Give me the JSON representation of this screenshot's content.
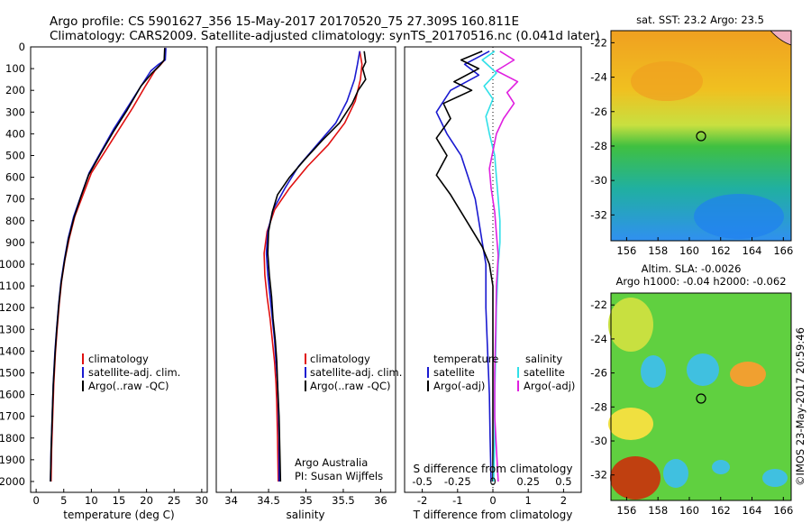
{
  "header": {
    "line1": "Argo profile: CS 5901627_356 15-May-2017 20170520_75 27.309S 160.811E",
    "line2": "Climatology: CARS2009. Satellite-adjusted climatology: synTS_20170516.nc (0.041d later)"
  },
  "colors": {
    "climatology": "#e01010",
    "satellite": "#1a1ad0",
    "argo": "#000000",
    "sat_salinity": "#30e0e8",
    "argo_salinity": "#e020e0"
  },
  "footer": {
    "argo_line1": "Argo Australia",
    "argo_line2": "PI: Susan Wijffels",
    "credit": "©IMOS 23-May-2017 20:59:46"
  },
  "maps": {
    "sst_title": "sat. SST: 23.2 Argo: 23.5",
    "sla_title1": "Altim. SLA: -0.0026",
    "sla_title2": "Argo h1000: -0.04 h2000: -0.062",
    "lon_ticks": [
      "156",
      "158",
      "160",
      "162",
      "164",
      "166"
    ],
    "lat_ticks": [
      "-22",
      "-24",
      "-26",
      "-28",
      "-30",
      "-32"
    ]
  },
  "chart_data": [
    {
      "type": "line",
      "title": "",
      "xlabel": "temperature (deg C)",
      "ylabel": "",
      "xlim": [
        -1,
        31
      ],
      "ylim": [
        2050,
        0
      ],
      "x_ticks": [
        "0",
        "5",
        "10",
        "15",
        "20",
        "25",
        "30"
      ],
      "y_ticks": [
        "0",
        "100",
        "200",
        "300",
        "400",
        "500",
        "600",
        "700",
        "800",
        "900",
        "1000",
        "1100",
        "1200",
        "1300",
        "1400",
        "1500",
        "1600",
        "1700",
        "1800",
        "1900",
        "2000"
      ],
      "legend": [
        "climatology",
        "satellite-adj. clim.",
        "Argo(..raw -QC)"
      ],
      "series": [
        {
          "name": "climatology",
          "color": "#e01010",
          "points": [
            [
              23.3,
              5
            ],
            [
              23.3,
              60
            ],
            [
              22.6,
              80
            ],
            [
              21.5,
              110
            ],
            [
              19.8,
              180
            ],
            [
              17.5,
              280
            ],
            [
              15,
              380
            ],
            [
              12.5,
              480
            ],
            [
              10,
              580
            ],
            [
              8.5,
              680
            ],
            [
              7,
              780
            ],
            [
              6,
              880
            ],
            [
              5.2,
              980
            ],
            [
              4.6,
              1080
            ],
            [
              4.2,
              1180
            ],
            [
              3.8,
              1300
            ],
            [
              3.5,
              1400
            ],
            [
              3.2,
              1550
            ],
            [
              3,
              1700
            ],
            [
              2.8,
              1850
            ],
            [
              2.7,
              2000
            ]
          ]
        },
        {
          "name": "satellite-adj. clim.",
          "color": "#1a1ad0",
          "points": [
            [
              23.5,
              5
            ],
            [
              23.4,
              60
            ],
            [
              22.2,
              80
            ],
            [
              20.8,
              110
            ],
            [
              19,
              180
            ],
            [
              16.5,
              280
            ],
            [
              14,
              380
            ],
            [
              11.8,
              480
            ],
            [
              9.6,
              580
            ],
            [
              8.2,
              680
            ],
            [
              6.8,
              780
            ],
            [
              5.8,
              880
            ],
            [
              5.1,
              980
            ],
            [
              4.5,
              1080
            ],
            [
              4.1,
              1180
            ],
            [
              3.7,
              1300
            ],
            [
              3.4,
              1400
            ],
            [
              3.1,
              1550
            ],
            [
              2.9,
              1700
            ],
            [
              2.7,
              1850
            ],
            [
              2.6,
              2000
            ]
          ]
        },
        {
          "name": "Argo(..raw -QC)",
          "color": "#000000",
          "points": [
            [
              23.3,
              5
            ],
            [
              23.2,
              60
            ],
            [
              22.4,
              85
            ],
            [
              21,
              120
            ],
            [
              19,
              180
            ],
            [
              16.5,
              290
            ],
            [
              14,
              390
            ],
            [
              11.7,
              490
            ],
            [
              9.5,
              590
            ],
            [
              8.1,
              690
            ],
            [
              6.8,
              790
            ],
            [
              5.8,
              890
            ],
            [
              5.1,
              990
            ],
            [
              4.5,
              1090
            ],
            [
              4.1,
              1190
            ],
            [
              3.7,
              1310
            ],
            [
              3.4,
              1420
            ],
            [
              3.1,
              1560
            ],
            [
              2.9,
              1710
            ],
            [
              2.7,
              1860
            ],
            [
              2.6,
              2000
            ]
          ]
        }
      ]
    },
    {
      "type": "line",
      "title": "",
      "xlabel": "salinity",
      "ylabel": "",
      "xlim": [
        33.8,
        36.2
      ],
      "ylim": [
        2050,
        0
      ],
      "x_ticks": [
        "34",
        "34.5",
        "35",
        "35.5",
        "36"
      ],
      "legend": [
        "climatology",
        "satellite-adj. clim.",
        "Argo(..raw -QC)"
      ],
      "series": [
        {
          "name": "climatology",
          "color": "#e01010",
          "points": [
            [
              35.72,
              20
            ],
            [
              35.75,
              80
            ],
            [
              35.73,
              150
            ],
            [
              35.66,
              250
            ],
            [
              35.52,
              350
            ],
            [
              35.3,
              450
            ],
            [
              35.02,
              550
            ],
            [
              34.78,
              650
            ],
            [
              34.58,
              750
            ],
            [
              34.48,
              850
            ],
            [
              34.44,
              950
            ],
            [
              34.45,
              1050
            ],
            [
              34.48,
              1150
            ],
            [
              34.52,
              1250
            ],
            [
              34.55,
              1350
            ],
            [
              34.58,
              1450
            ],
            [
              34.6,
              1550
            ],
            [
              34.61,
              1650
            ],
            [
              34.62,
              1800
            ],
            [
              34.63,
              2000
            ]
          ]
        },
        {
          "name": "satellite-adj. clim.",
          "color": "#1a1ad0",
          "points": [
            [
              35.72,
              20
            ],
            [
              35.69,
              80
            ],
            [
              35.65,
              150
            ],
            [
              35.55,
              250
            ],
            [
              35.4,
              350
            ],
            [
              35.15,
              450
            ],
            [
              34.9,
              550
            ],
            [
              34.72,
              650
            ],
            [
              34.56,
              750
            ],
            [
              34.49,
              850
            ],
            [
              34.47,
              950
            ],
            [
              34.49,
              1050
            ],
            [
              34.52,
              1150
            ],
            [
              34.55,
              1250
            ],
            [
              34.58,
              1350
            ],
            [
              34.6,
              1450
            ],
            [
              34.62,
              1550
            ],
            [
              34.63,
              1650
            ],
            [
              34.64,
              1800
            ],
            [
              34.64,
              2000
            ]
          ]
        },
        {
          "name": "Argo(..raw -QC)",
          "color": "#000000",
          "points": [
            [
              35.78,
              20
            ],
            [
              35.8,
              70
            ],
            [
              35.76,
              100
            ],
            [
              35.8,
              150
            ],
            [
              35.7,
              200
            ],
            [
              35.62,
              260
            ],
            [
              35.45,
              350
            ],
            [
              35.22,
              430
            ],
            [
              34.98,
              520
            ],
            [
              34.78,
              600
            ],
            [
              34.62,
              680
            ],
            [
              34.55,
              760
            ],
            [
              34.5,
              850
            ],
            [
              34.49,
              950
            ],
            [
              34.51,
              1050
            ],
            [
              34.54,
              1150
            ],
            [
              34.56,
              1250
            ],
            [
              34.59,
              1350
            ],
            [
              34.61,
              1450
            ],
            [
              34.62,
              1550
            ],
            [
              34.64,
              1700
            ],
            [
              34.65,
              1850
            ],
            [
              34.66,
              2000
            ]
          ]
        }
      ]
    },
    {
      "type": "line",
      "title": "",
      "xlabel": "T difference from climatology",
      "xlabel_top": "S difference from climatology",
      "ylabel": "",
      "xlim": [
        -2.5,
        2.5
      ],
      "ylim": [
        2050,
        0
      ],
      "x_ticks": [
        "-2",
        "-1",
        "0",
        "1",
        "2"
      ],
      "x_ticks_top": [
        "-0.5",
        "-0.25",
        "0",
        "0.25",
        "0.5"
      ],
      "legend_titles": [
        "temperature",
        "salinity"
      ],
      "legend": [
        "satellite",
        "Argo(-adj)",
        "satellite",
        "Argo(-adj)"
      ],
      "series": [
        {
          "name": "satellite",
          "color": "#1a1ad0",
          "points": [
            [
              -0.1,
              20
            ],
            [
              -0.8,
              80
            ],
            [
              -0.4,
              130
            ],
            [
              -1.2,
              200
            ],
            [
              -1.6,
              300
            ],
            [
              -1.3,
              400
            ],
            [
              -0.9,
              500
            ],
            [
              -0.7,
              600
            ],
            [
              -0.5,
              700
            ],
            [
              -0.4,
              800
            ],
            [
              -0.3,
              900
            ],
            [
              -0.2,
              1000
            ],
            [
              -0.2,
              1200
            ],
            [
              -0.15,
              1400
            ],
            [
              -0.1,
              1600
            ],
            [
              -0.08,
              1800
            ],
            [
              -0.05,
              2000
            ]
          ]
        },
        {
          "name": "Argo(-adj)",
          "color": "#000000",
          "points": [
            [
              -0.3,
              20
            ],
            [
              -0.9,
              60
            ],
            [
              -0.4,
              100
            ],
            [
              -1.1,
              160
            ],
            [
              -0.6,
              200
            ],
            [
              -1.4,
              260
            ],
            [
              -1.2,
              330
            ],
            [
              -1.6,
              420
            ],
            [
              -1.3,
              500
            ],
            [
              -1.6,
              590
            ],
            [
              -1.2,
              680
            ],
            [
              -0.9,
              760
            ],
            [
              -0.6,
              840
            ],
            [
              -0.3,
              920
            ],
            [
              -0.1,
              1000
            ],
            [
              0,
              1100
            ],
            [
              0,
              1300
            ],
            [
              0,
              1500
            ],
            [
              0,
              1700
            ],
            [
              0,
              1900
            ],
            [
              0,
              2000
            ]
          ]
        },
        {
          "name": "satellite",
          "color": "#30e0e8",
          "points": [
            [
              0.05,
              20
            ],
            [
              -0.3,
              60
            ],
            [
              0.1,
              120
            ],
            [
              -0.25,
              180
            ],
            [
              0,
              240
            ],
            [
              -0.2,
              320
            ],
            [
              -0.1,
              400
            ],
            [
              0.05,
              500
            ],
            [
              0.1,
              600
            ],
            [
              0.15,
              700
            ],
            [
              0.2,
              800
            ],
            [
              0.2,
              900
            ],
            [
              0.15,
              1000
            ],
            [
              0.1,
              1200
            ],
            [
              0.08,
              1400
            ],
            [
              0.05,
              1600
            ],
            [
              0.05,
              1800
            ],
            [
              0.02,
              2000
            ]
          ]
        },
        {
          "name": "Argo(-adj)",
          "color": "#e020e0",
          "points": [
            [
              0.2,
              20
            ],
            [
              0.6,
              60
            ],
            [
              0.1,
              110
            ],
            [
              0.7,
              160
            ],
            [
              0.4,
              210
            ],
            [
              0.6,
              260
            ],
            [
              0.3,
              330
            ],
            [
              0.1,
              400
            ],
            [
              0,
              480
            ],
            [
              -0.1,
              560
            ],
            [
              -0.05,
              650
            ],
            [
              0.05,
              760
            ],
            [
              0.1,
              860
            ],
            [
              0.15,
              960
            ],
            [
              0.1,
              1100
            ],
            [
              0.08,
              1300
            ],
            [
              0.05,
              1500
            ],
            [
              0.05,
              1700
            ],
            [
              0.1,
              1850
            ],
            [
              0.15,
              2000
            ]
          ]
        }
      ]
    }
  ]
}
